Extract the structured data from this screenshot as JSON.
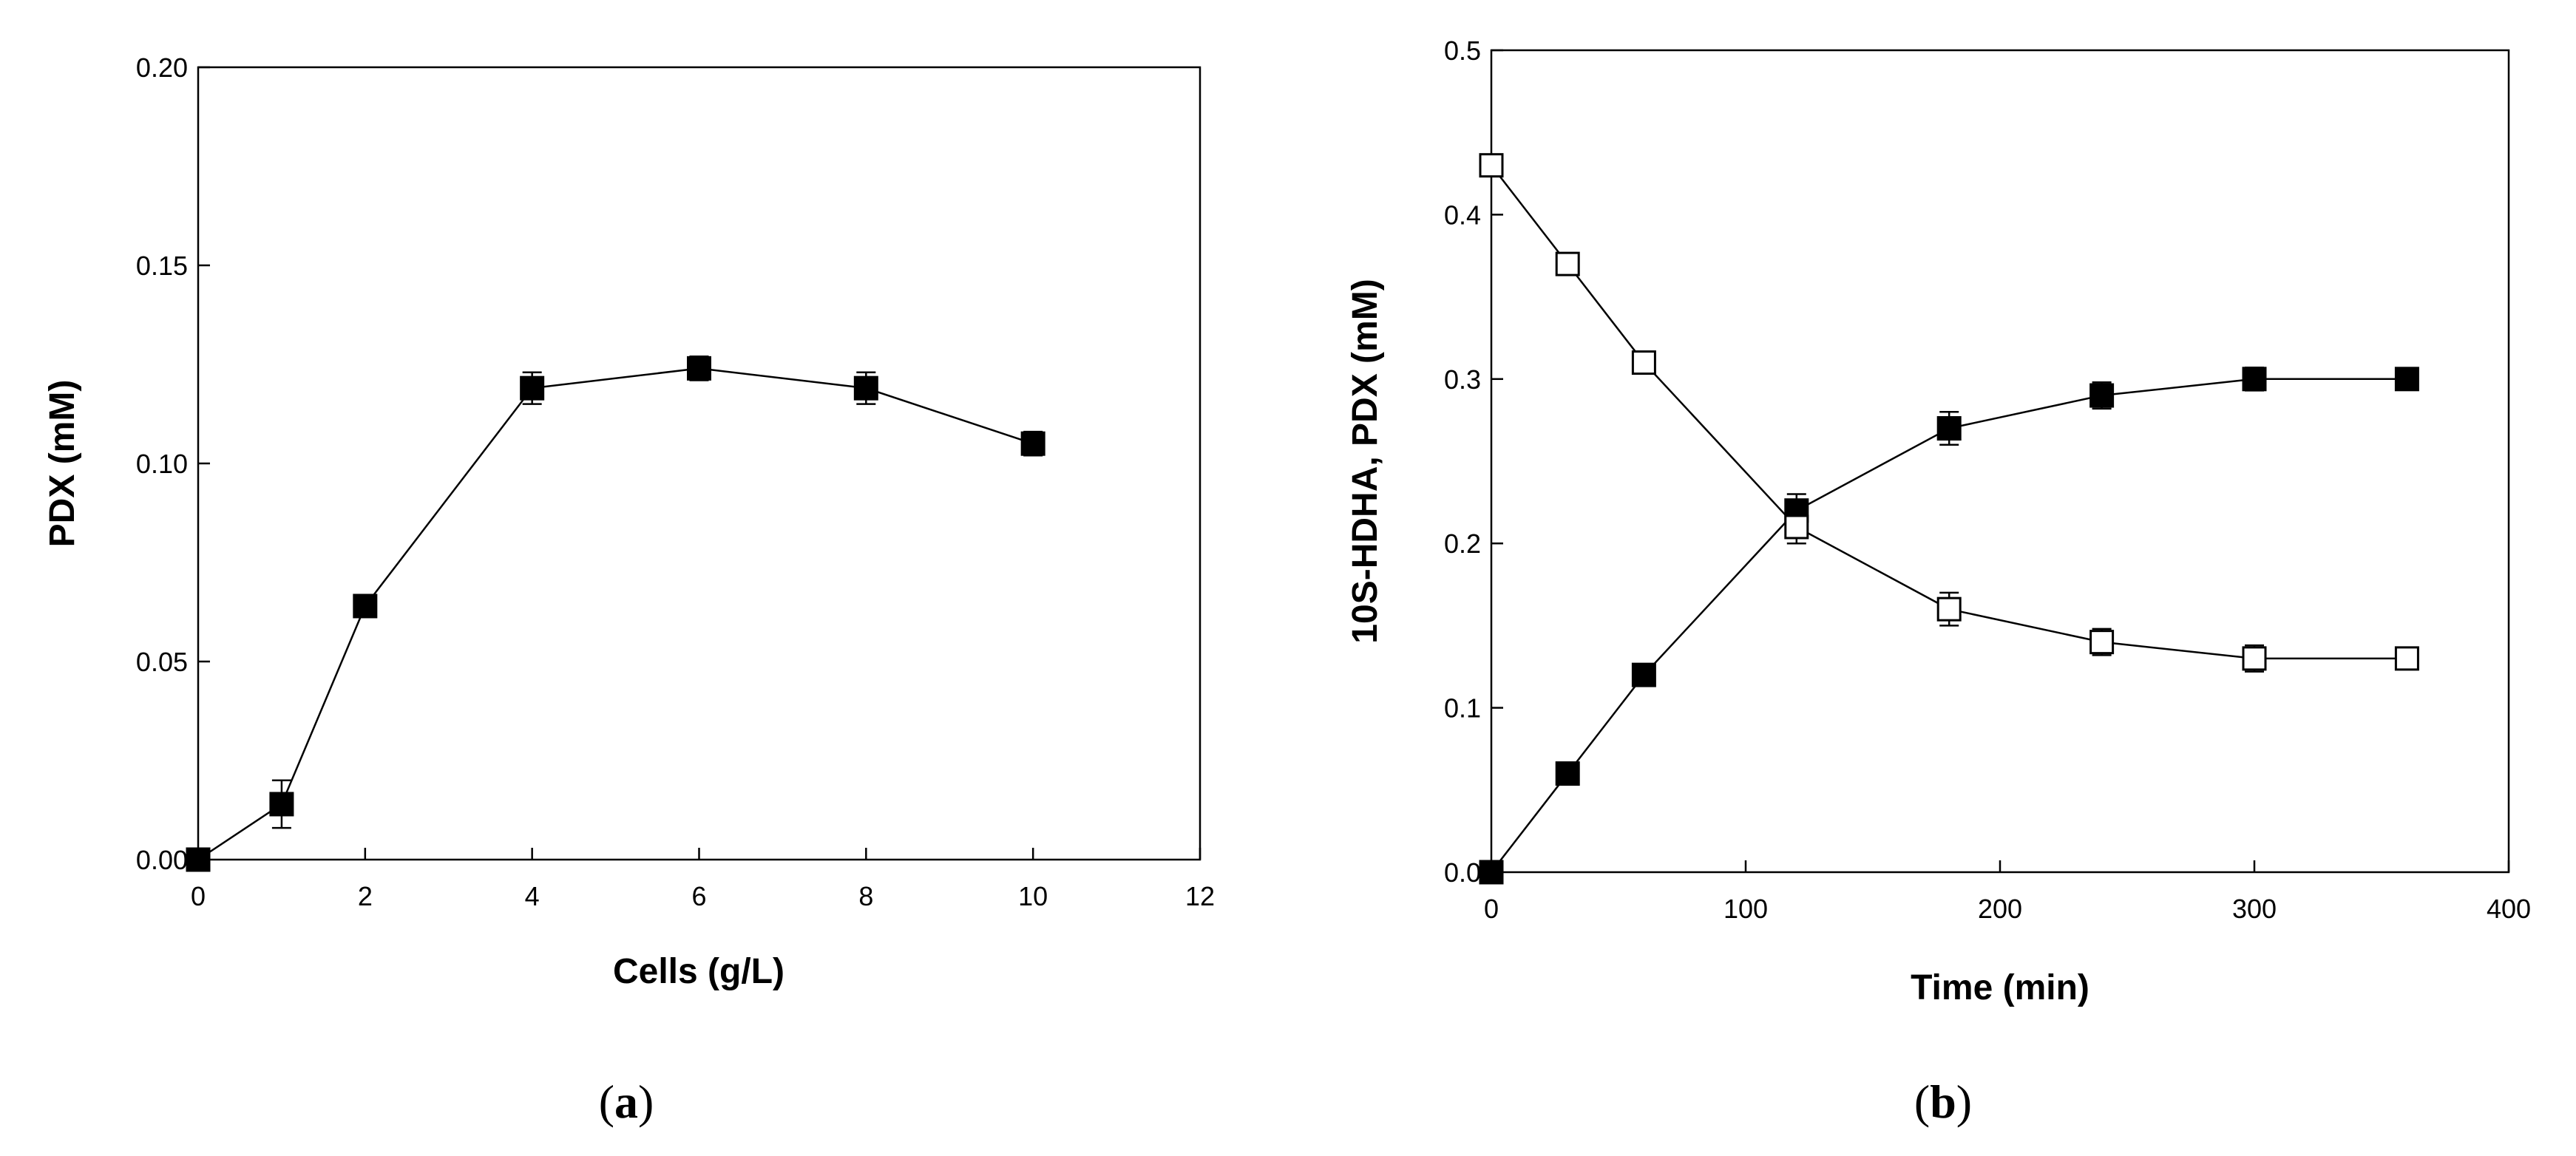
{
  "chart_data": [
    {
      "type": "scatter",
      "panel_label": "a",
      "title": "",
      "xlabel": "Cells (g/L)",
      "ylabel": "PDX (mM)",
      "xlim": [
        0,
        12
      ],
      "ylim": [
        0,
        0.2
      ],
      "xticks": [
        0,
        2,
        4,
        6,
        8,
        10,
        12
      ],
      "yticks": [
        0.0,
        0.05,
        0.1,
        0.15,
        0.2
      ],
      "xtick_labels": [
        "0",
        "2",
        "4",
        "6",
        "8",
        "10",
        "12"
      ],
      "ytick_labels": [
        "0.00",
        "0.05",
        "0.10",
        "0.15",
        "0.20"
      ],
      "grid": false,
      "series": [
        {
          "marker": "filled-square",
          "color": "#000000",
          "x": [
            0,
            1,
            2,
            4,
            6,
            8,
            10
          ],
          "y": [
            0.0,
            0.014,
            0.064,
            0.119,
            0.124,
            0.119,
            0.105
          ],
          "err": [
            0,
            0.006,
            0.002,
            0.004,
            0.003,
            0.004,
            0.003
          ]
        }
      ]
    },
    {
      "type": "scatter",
      "panel_label": "b",
      "title": "",
      "xlabel": "Time (min)",
      "ylabel": "10S-HDHA, PDX (mM)",
      "xlim": [
        0,
        400
      ],
      "ylim": [
        0,
        0.5
      ],
      "xticks": [
        0,
        100,
        200,
        300,
        400
      ],
      "yticks": [
        0.0,
        0.1,
        0.2,
        0.3,
        0.4,
        0.5
      ],
      "xtick_labels": [
        "0",
        "100",
        "200",
        "300",
        "400"
      ],
      "ytick_labels": [
        "0.0",
        "0.1",
        "0.2",
        "0.3",
        "0.4",
        "0.5"
      ],
      "grid": false,
      "series": [
        {
          "marker": "filled-square",
          "color": "#000000",
          "x": [
            0,
            30,
            60,
            120,
            180,
            240,
            300,
            360
          ],
          "y": [
            0.0,
            0.06,
            0.12,
            0.22,
            0.27,
            0.29,
            0.3,
            0.3
          ],
          "err": [
            0,
            0.003,
            0.004,
            0.01,
            0.01,
            0.008,
            0.007,
            0.005
          ]
        },
        {
          "marker": "open-square",
          "color": "#000000",
          "x": [
            0,
            30,
            60,
            120,
            180,
            240,
            300,
            360
          ],
          "y": [
            0.43,
            0.37,
            0.31,
            0.21,
            0.16,
            0.14,
            0.13,
            0.13
          ],
          "err": [
            0.003,
            0.004,
            0.006,
            0.01,
            0.01,
            0.008,
            0.008,
            0.004
          ]
        }
      ]
    }
  ]
}
